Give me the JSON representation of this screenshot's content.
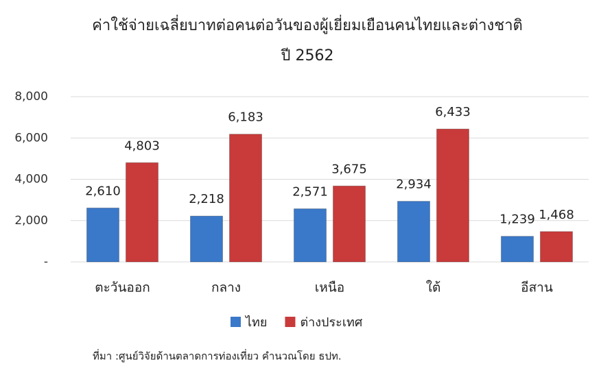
{
  "chart_data": {
    "type": "bar",
    "title": "ค่าใช้จ่ายเฉลี่ยบาทต่อคนต่อวันของผู้เยี่ยมเยือนคนไทยและต่างชาติ",
    "subtitle": "ปี 2562",
    "source": "ที่มา :ศูนย์วิจัยด้านตลาดการท่องเที่ยว คำนวณโดย ธปท.",
    "categories": [
      "ตะวันออก",
      "กลาง",
      "เหนือ",
      "ใต้",
      "อีสาน"
    ],
    "series": [
      {
        "name": "ไทย",
        "color": "#3a78c9",
        "values": [
          2610,
          2218,
          2571,
          2934,
          1239
        ],
        "value_labels": [
          "2,610",
          "2,218",
          "2,571",
          "2,934",
          "1,239"
        ]
      },
      {
        "name": "ต่างประเทศ",
        "color": "#c93a3a",
        "values": [
          4803,
          6183,
          3675,
          6433,
          1468
        ],
        "value_labels": [
          "4,803",
          "6,183",
          "3,675",
          "6,433",
          "1,468"
        ]
      }
    ],
    "ylim": [
      0,
      8000
    ],
    "yticks": [
      {
        "value": 0,
        "label": "-"
      },
      {
        "value": 2000,
        "label": "2,000"
      },
      {
        "value": 4000,
        "label": "4,000"
      },
      {
        "value": 6000,
        "label": "6,000"
      },
      {
        "value": 8000,
        "label": "8,000"
      }
    ],
    "grid": true,
    "legend": "bottom"
  }
}
